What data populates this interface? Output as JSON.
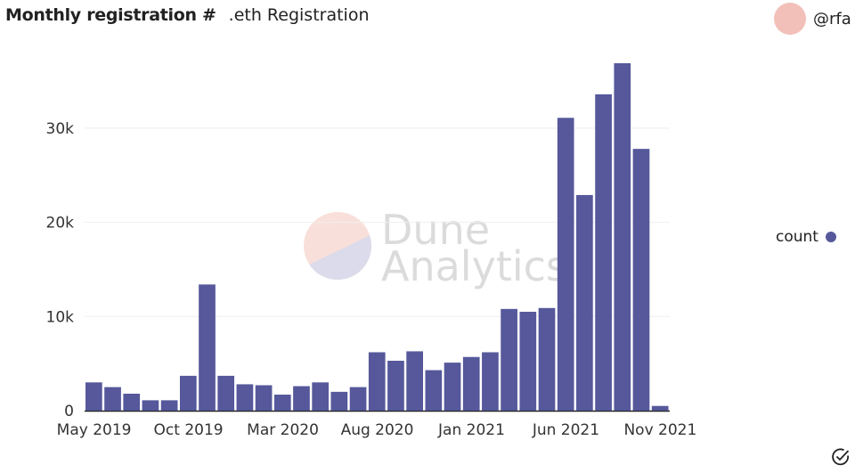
{
  "header": {
    "title": "Monthly registration #",
    "subtitle": ".eth Registration",
    "author": "@rfa"
  },
  "watermark": {
    "line1": "Dune",
    "line2": "Analytics"
  },
  "colors": {
    "bar": "#56589b",
    "avatar": "#f2c0b8"
  },
  "chart_data": {
    "type": "bar",
    "title": "Monthly registration # .eth Registration",
    "xlabel": "",
    "ylabel": "",
    "categories": [
      "May 2019",
      "Jun 2019",
      "Jul 2019",
      "Aug 2019",
      "Sep 2019",
      "Oct 2019",
      "Nov 2019",
      "Dec 2019",
      "Jan 2020",
      "Feb 2020",
      "Mar 2020",
      "Apr 2020",
      "May 2020",
      "Jun 2020",
      "Jul 2020",
      "Aug 2020",
      "Sep 2020",
      "Oct 2020",
      "Nov 2020",
      "Dec 2020",
      "Jan 2021",
      "Feb 2021",
      "Mar 2021",
      "Apr 2021",
      "May 2021",
      "Jun 2021",
      "Jul 2021",
      "Aug 2021",
      "Sep 2021",
      "Oct 2021",
      "Nov 2021"
    ],
    "series": [
      {
        "name": "count",
        "values": [
          3000,
          2500,
          1800,
          1100,
          1100,
          3700,
          13400,
          3700,
          2800,
          2700,
          1700,
          2600,
          3000,
          2000,
          2500,
          6200,
          5300,
          6300,
          4300,
          5100,
          5700,
          6200,
          10800,
          10500,
          10900,
          31100,
          22900,
          33600,
          36900,
          27800,
          500
        ]
      }
    ],
    "x_tick_labels": [
      "May 2019",
      "Oct 2019",
      "Mar 2020",
      "Aug 2020",
      "Jan 2021",
      "Jun 2021",
      "Nov 2021"
    ],
    "y_ticks": [
      0,
      10000,
      20000,
      30000
    ],
    "y_tick_labels": [
      "0",
      "10k",
      "20k",
      "30k"
    ],
    "ylim": [
      0,
      38000
    ],
    "grid": true,
    "legend": {
      "entries": [
        "count"
      ],
      "placement": "right"
    }
  }
}
